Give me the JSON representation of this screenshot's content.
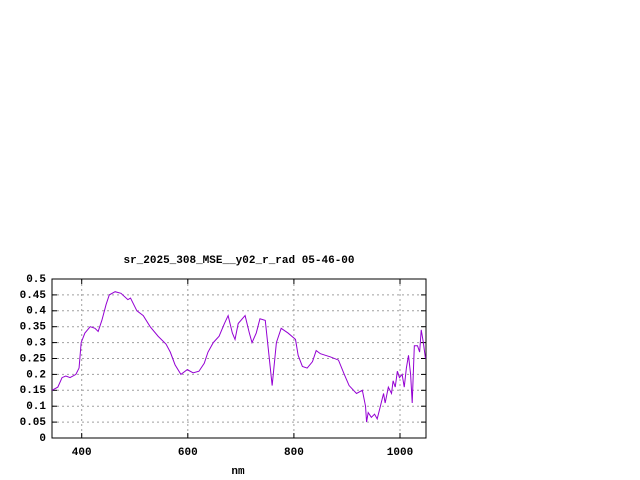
{
  "chart_data": {
    "type": "line",
    "title": "sr_2025_308_MSE__y02_r_rad 05-46-00",
    "x_label": "nm",
    "xlim": [
      344,
      1049
    ],
    "xticks": [
      400,
      600,
      800,
      1000
    ],
    "ylim": [
      0,
      0.5
    ],
    "yticks": [
      0,
      0.05,
      0.1,
      0.15,
      0.2,
      0.25,
      0.3,
      0.35,
      0.4,
      0.45,
      0.5
    ],
    "grid": true,
    "x": [
      344,
      355,
      363,
      370,
      378,
      389,
      395,
      399,
      406,
      416,
      425,
      431,
      438,
      446,
      452,
      463,
      474,
      487,
      492,
      504,
      516,
      529,
      544,
      559,
      567,
      576,
      587,
      599,
      610,
      621,
      631,
      638,
      648,
      659,
      669,
      676,
      684,
      689,
      695,
      708,
      716,
      721,
      729,
      736,
      746,
      753,
      759,
      767,
      776,
      789,
      803,
      808,
      816,
      825,
      835,
      842,
      850,
      869,
      884,
      895,
      904,
      918,
      929,
      935,
      937,
      940,
      946,
      952,
      957,
      963,
      969,
      972,
      978,
      984,
      987,
      991,
      995,
      999,
      1004,
      1008,
      1012,
      1016,
      1020,
      1023,
      1027,
      1033,
      1037,
      1040,
      1044,
      1048
    ],
    "series": [
      {
        "color": "#9400d3",
        "values": [
          0.15,
          0.16,
          0.19,
          0.195,
          0.19,
          0.2,
          0.22,
          0.3,
          0.33,
          0.35,
          0.345,
          0.335,
          0.37,
          0.42,
          0.45,
          0.46,
          0.455,
          0.435,
          0.44,
          0.4,
          0.385,
          0.35,
          0.32,
          0.295,
          0.27,
          0.23,
          0.2,
          0.215,
          0.205,
          0.21,
          0.235,
          0.27,
          0.3,
          0.32,
          0.36,
          0.385,
          0.33,
          0.31,
          0.36,
          0.385,
          0.33,
          0.3,
          0.33,
          0.375,
          0.37,
          0.26,
          0.165,
          0.3,
          0.345,
          0.33,
          0.31,
          0.26,
          0.225,
          0.22,
          0.24,
          0.275,
          0.265,
          0.255,
          0.245,
          0.2,
          0.165,
          0.14,
          0.15,
          0.1,
          0.05,
          0.08,
          0.065,
          0.075,
          0.06,
          0.1,
          0.14,
          0.11,
          0.16,
          0.14,
          0.18,
          0.16,
          0.21,
          0.19,
          0.2,
          0.16,
          0.22,
          0.26,
          0.2,
          0.11,
          0.29,
          0.29,
          0.27,
          0.34,
          0.3,
          0.25
        ]
      }
    ]
  }
}
